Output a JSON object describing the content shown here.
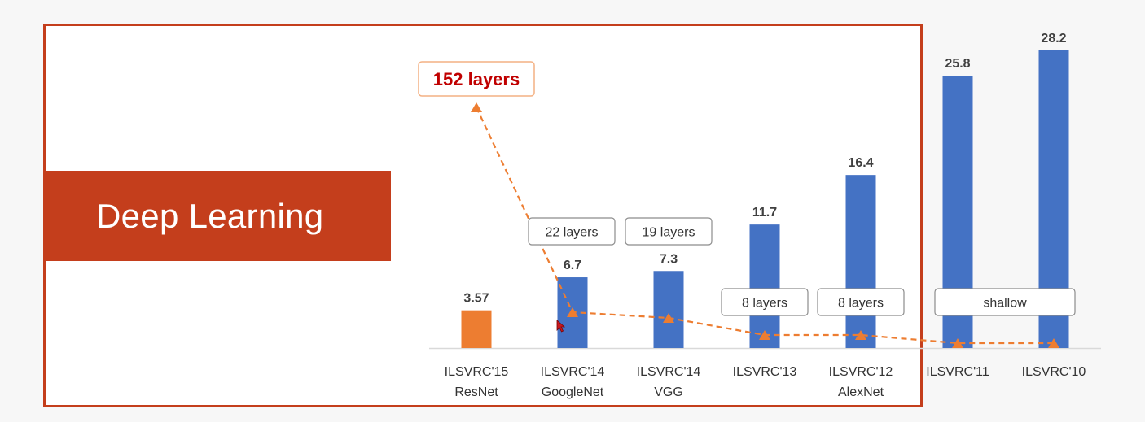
{
  "slide": {
    "title": "Deep Learning"
  },
  "chart_data": {
    "type": "bar",
    "categories": [
      [
        "ILSVRC'15",
        "ResNet"
      ],
      [
        "ILSVRC'14",
        "GoogleNet"
      ],
      [
        "ILSVRC'14",
        "VGG"
      ],
      [
        "ILSVRC'13"
      ],
      [
        "ILSVRC'12",
        "AlexNet"
      ],
      [
        "ILSVRC'11"
      ],
      [
        "ILSVRC'10"
      ]
    ],
    "values": [
      3.57,
      6.7,
      7.3,
      11.7,
      16.4,
      25.8,
      28.2
    ],
    "value_labels": [
      "3.57",
      "6.7",
      "7.3",
      "11.7",
      "16.4",
      "25.8",
      "28.2"
    ],
    "bar_colors": [
      "#ed7d31",
      "#4472c4",
      "#4472c4",
      "#4472c4",
      "#4472c4",
      "#4472c4",
      "#4472c4"
    ],
    "ylim": [
      0,
      28.2
    ],
    "depth_line": {
      "color": "#ed7d31",
      "style": "dashed",
      "values": [
        152,
        22,
        19,
        8,
        8,
        1,
        1
      ]
    },
    "annotations": [
      {
        "text": "152 layers",
        "category_index": 0,
        "emphasis": true,
        "text_color": "#c00000"
      },
      {
        "text": "22 layers",
        "category_index": 1
      },
      {
        "text": "19 layers",
        "category_index": 2
      },
      {
        "text": "8 layers",
        "category_index": 3
      },
      {
        "text": "8 layers",
        "category_index": 4
      },
      {
        "text": "shallow",
        "category_indices": [
          5,
          6
        ]
      }
    ],
    "title": "",
    "xlabel": "",
    "ylabel": ""
  },
  "colors": {
    "accent": "#c43e1c",
    "bar": "#4472c4",
    "highlight_bar": "#ed7d31"
  },
  "icons": {
    "cursor": "mouse-cursor-icon"
  }
}
